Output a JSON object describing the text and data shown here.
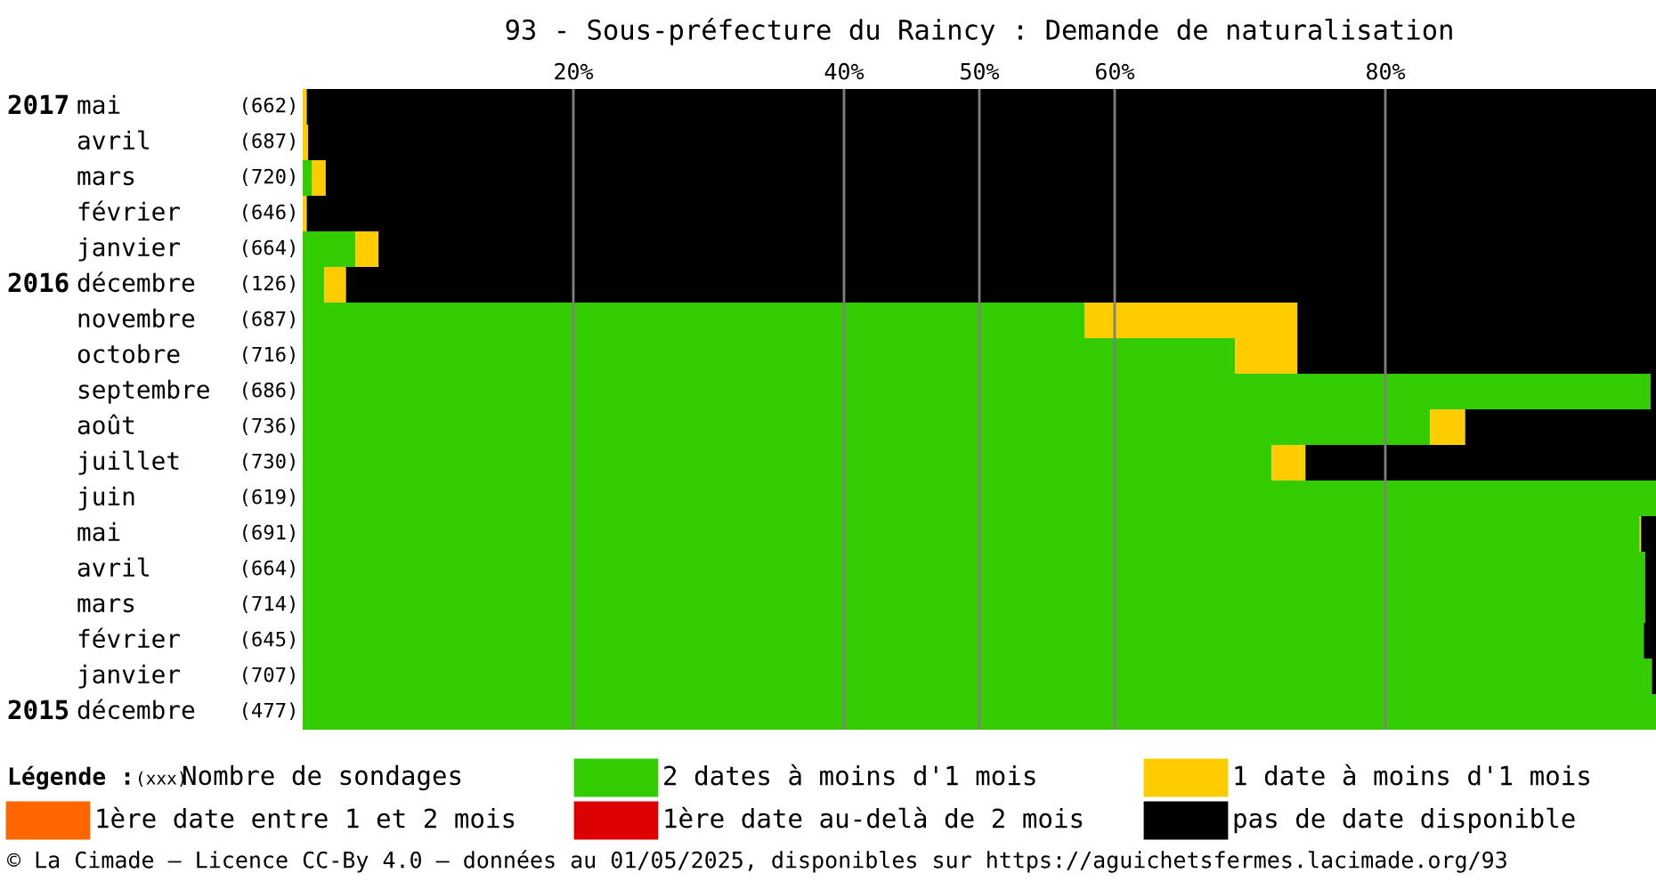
{
  "chart_data": {
    "type": "bar",
    "orientation": "horizontal",
    "stacked": true,
    "title": "93 - Sous-préfecture du Raincy : Demande de naturalisation",
    "categories": [
      "2017 mai (662)",
      "avril (687)",
      "mars (720)",
      "février (646)",
      "janvier (664)",
      "2016 décembre (126)",
      "novembre (687)",
      "octobre (716)",
      "septembre (686)",
      "août (736)",
      "juillet (730)",
      "juin (619)",
      "mai (691)",
      "avril (664)",
      "mars (714)",
      "février (645)",
      "janvier (707)",
      "2015 décembre (477)"
    ],
    "series": [
      {
        "name": "2 dates à moins d'1 mois",
        "color": "#33cc00",
        "values": [
          0,
          0,
          0.7,
          0,
          3.9,
          1.6,
          57.8,
          68.9,
          99.6,
          83.3,
          71.6,
          100,
          98.8,
          99.2,
          99.2,
          99.1,
          99.7,
          100
        ]
      },
      {
        "name": "1 date à moins d'1 mois",
        "color": "#ffcc00",
        "values": [
          0.3,
          0.4,
          1.0,
          0.3,
          1.7,
          1.6,
          15.7,
          4.6,
          0,
          2.6,
          2.5,
          0,
          0.1,
          0,
          0,
          0,
          0,
          0
        ]
      },
      {
        "name": "1ère date entre 1 et 2 mois",
        "color": "#ff6600",
        "values": [
          0,
          0,
          0,
          0,
          0,
          0,
          0,
          0,
          0,
          0,
          0,
          0,
          0,
          0,
          0,
          0,
          0,
          0
        ]
      },
      {
        "name": "1ère date au-delà de 2 mois",
        "color": "#dd0000",
        "values": [
          0,
          0,
          0,
          0,
          0,
          0,
          0,
          0,
          0,
          0,
          0,
          0,
          0,
          0,
          0,
          0,
          0,
          0
        ]
      },
      {
        "name": "pas de date disponible",
        "color": "#000000",
        "values": [
          99.7,
          99.6,
          98.3,
          99.7,
          94.4,
          96.8,
          26.5,
          26.5,
          0.4,
          14.1,
          25.9,
          0,
          1.1,
          0.8,
          0.8,
          0.9,
          0.3,
          0
        ]
      }
    ],
    "xlim": [
      0,
      100
    ],
    "xticks": [
      {
        "value": 20,
        "label": "20%"
      },
      {
        "value": 40,
        "label": "40%"
      },
      {
        "value": 50,
        "label": "50%"
      },
      {
        "value": 60,
        "label": "60%"
      },
      {
        "value": 80,
        "label": "80%"
      }
    ],
    "grid": "x",
    "tick_labels": "x",
    "legend": "bottom",
    "annotations": [
      "Légende :",
      "(xxx)",
      "Nombre de sondages",
      "© La Cimade – Licence CC-By 4.0 – données au 01/05/2025, disponibles sur https://aguichetsfermes.lacimade.org/93"
    ]
  }
}
